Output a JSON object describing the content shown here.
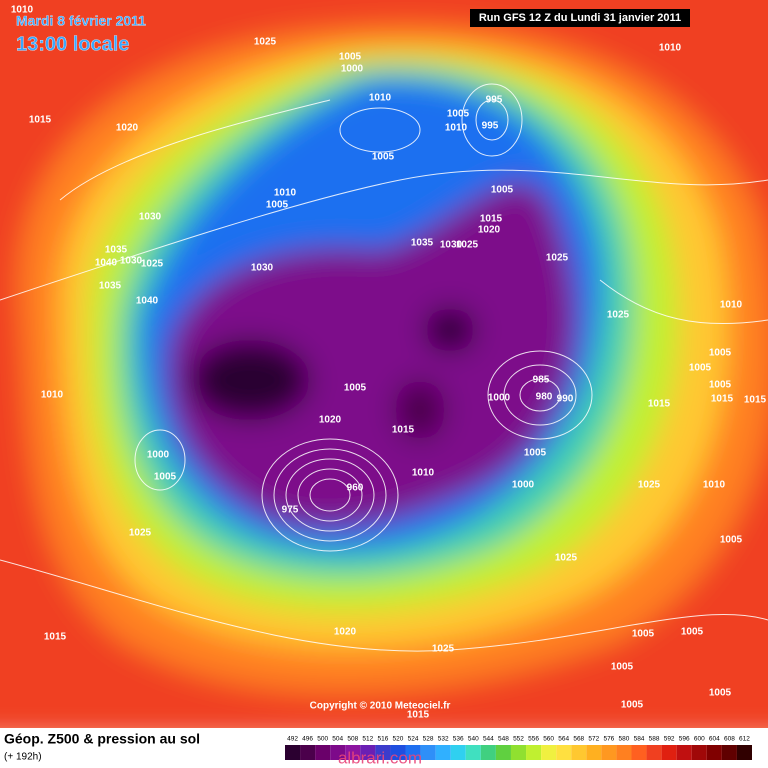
{
  "header": {
    "date": "Mardi 8 février 2011",
    "time": "13:00 locale",
    "run": "Run GFS 12 Z du Lundi 31 janvier 2011"
  },
  "footer": {
    "title": "Géop. Z500 & pression au sol",
    "lead": "(+ 192h)",
    "copyright": "Copyright © 2010 Meteociel.fr",
    "watermark": "albrari.com"
  },
  "legend": {
    "values": [
      492,
      496,
      500,
      504,
      508,
      512,
      516,
      520,
      524,
      528,
      532,
      536,
      540,
      544,
      548,
      552,
      556,
      560,
      564,
      568,
      572,
      576,
      580,
      584,
      588,
      592,
      596,
      600,
      604,
      608,
      612
    ],
    "colors": [
      "#2b0030",
      "#4b004b",
      "#6a006a",
      "#7d0a8a",
      "#8c14a0",
      "#6a1fb4",
      "#3c3ccc",
      "#1f4fe0",
      "#1f6ff0",
      "#2f8ff8",
      "#30b0ff",
      "#30d0f0",
      "#40e0c0",
      "#40d080",
      "#60d040",
      "#90e030",
      "#c0f030",
      "#f0f040",
      "#ffe040",
      "#ffc830",
      "#ffb020",
      "#ff9820",
      "#ff8020",
      "#ff6020",
      "#f04020",
      "#e02010",
      "#c01010",
      "#a00808",
      "#800000",
      "#600000",
      "#300000"
    ]
  },
  "pressure_labels": [
    1010,
    1025,
    1010,
    1015,
    1020,
    1005,
    1000,
    1010,
    995,
    1005,
    995,
    1010,
    1005,
    1010,
    1005,
    1030,
    1005,
    1015,
    1020,
    1035,
    1030,
    1025,
    1025,
    1035,
    1040,
    1030,
    1025,
    1030,
    1035,
    1040,
    1025,
    1010,
    1005,
    1005,
    1005,
    1015,
    1015,
    985,
    980,
    990,
    1000,
    1005,
    1015,
    1015,
    1020,
    1010,
    1000,
    1005,
    1005,
    1010,
    1000,
    1025,
    1010,
    1005,
    960,
    975,
    1025,
    1025,
    1015,
    1020,
    1025,
    1005,
    1005,
    1005,
    1005,
    1005,
    1015
  ]
}
